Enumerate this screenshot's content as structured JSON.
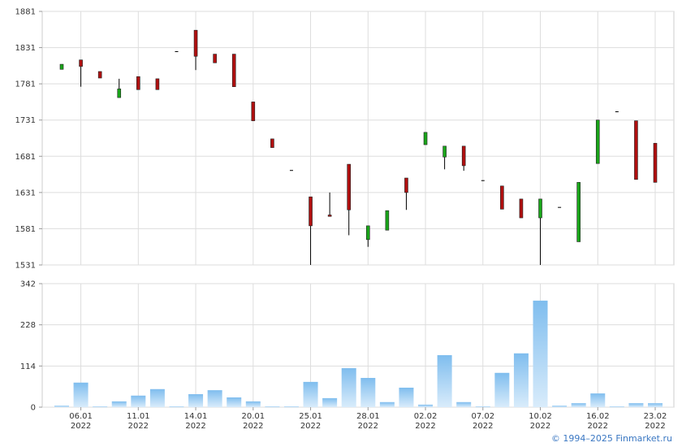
{
  "chart_data": [
    {
      "type": "candlestick",
      "open": [
        1801,
        1814,
        1798,
        1762,
        1791,
        1788,
        1826,
        1855,
        1822,
        1822,
        1756,
        1705,
        1662,
        1625,
        1600,
        1670,
        1566,
        1579,
        1651,
        1697,
        1680,
        1695,
        1648,
        1640,
        1622,
        1596,
        1611,
        1563,
        1671,
        1743,
        1730,
        1699
      ],
      "high": [
        1808,
        1814,
        1798,
        1788,
        1791,
        1788,
        1826,
        1855,
        1822,
        1822,
        1756,
        1705,
        1662,
        1625,
        1631,
        1670,
        1585,
        1606,
        1651,
        1714,
        1695,
        1695,
        1648,
        1640,
        1622,
        1622,
        1611,
        1645,
        1731,
        1743,
        1730,
        1699
      ],
      "low": [
        1801,
        1777,
        1789,
        1762,
        1773,
        1773,
        1826,
        1800,
        1810,
        1777,
        1730,
        1693,
        1662,
        1531,
        1598,
        1572,
        1556,
        1579,
        1607,
        1697,
        1663,
        1661,
        1648,
        1608,
        1596,
        1531,
        1611,
        1563,
        1671,
        1743,
        1649,
        1645
      ],
      "close": [
        1808,
        1805,
        1789,
        1774,
        1773,
        1773,
        1826,
        1819,
        1810,
        1777,
        1730,
        1693,
        1662,
        1585,
        1598,
        1607,
        1585,
        1606,
        1631,
        1714,
        1695,
        1668,
        1648,
        1608,
        1596,
        1622,
        1611,
        1645,
        1731,
        1743,
        1649,
        1645
      ],
      "up_color": "#1aa51a",
      "down_color": "#b01010",
      "ylim": [
        1531,
        1881
      ],
      "yticks": [
        1531,
        1581,
        1631,
        1681,
        1731,
        1781,
        1831,
        1881
      ],
      "grid": true
    },
    {
      "type": "bar",
      "categories": [
        null,
        "06.01\n2022",
        null,
        null,
        "11.01\n2022",
        null,
        null,
        "14.01\n2022",
        null,
        null,
        "20.01\n2022",
        null,
        null,
        "25.01\n2022",
        null,
        null,
        "28.01\n2022",
        null,
        null,
        "02.02\n2022",
        null,
        null,
        "07.02\n2022",
        null,
        null,
        "10.02\n2022",
        null,
        null,
        "16.02\n2022",
        null,
        null,
        "23.02\n2022"
      ],
      "values": [
        4,
        68,
        2,
        16,
        32,
        50,
        2,
        36,
        47,
        27,
        16,
        2,
        2,
        70,
        25,
        108,
        81,
        14,
        54,
        7,
        144,
        14,
        2,
        95,
        149,
        295,
        4,
        11,
        38,
        2,
        11,
        11
      ],
      "color": "#7fbdee",
      "ylim": [
        0,
        342
      ],
      "yticks": [
        0,
        114,
        228,
        342
      ],
      "grid": true
    }
  ],
  "footer": "© 1994–2025 Finmarket.ru"
}
